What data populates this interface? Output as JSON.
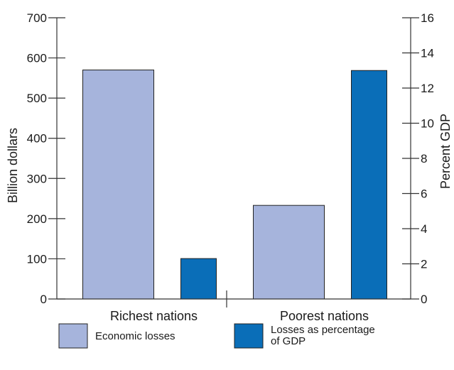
{
  "chart_data": {
    "type": "bar",
    "categories": [
      "Richest nations",
      "Poorest nations"
    ],
    "series": [
      {
        "name": "Economic losses",
        "axis": "left",
        "color": "#a6b4dc",
        "values": [
          570,
          233
        ]
      },
      {
        "name": "Losses as percentage of GDP",
        "axis": "right",
        "color": "#0a6eb8",
        "values": [
          2.3,
          13.0
        ]
      }
    ],
    "left_axis": {
      "label": "Billion dollars",
      "ylim": [
        0,
        700
      ],
      "ticks": [
        "0",
        "100",
        "200",
        "300",
        "400",
        "500",
        "600",
        "700"
      ]
    },
    "right_axis": {
      "label": "Percent GDP",
      "ylim": [
        0,
        16
      ],
      "ticks": [
        "0",
        "2",
        "4",
        "6",
        "8",
        "10",
        "12",
        "14",
        "16"
      ]
    },
    "legend": {
      "placement": "bottom",
      "items": [
        {
          "label": "Economic losses",
          "color": "#a6b4dc"
        },
        {
          "label_lines": [
            "Losses as percentage",
            "of GDP"
          ],
          "color": "#0a6eb8"
        }
      ]
    },
    "grid": false
  }
}
